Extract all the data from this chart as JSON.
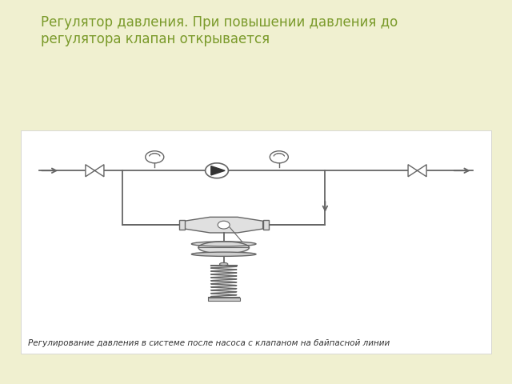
{
  "title": "Регулятор давления. При повышении давления до\nрегулятора клапан открывается",
  "title_color": "#7a9a2a",
  "caption": "Регулирование давления в системе после насоса с клапаном на байпасной линии",
  "background_color": "#f0f0d0",
  "diagram_bg": "#ffffff",
  "line_color": "#666666",
  "title_fontsize": 12,
  "caption_fontsize": 7.5
}
